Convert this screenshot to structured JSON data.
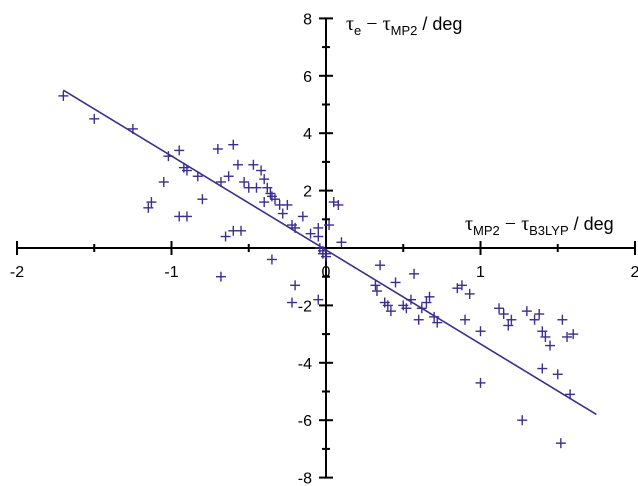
{
  "chart_data": {
    "type": "scatter",
    "xlim": [
      -2,
      2
    ],
    "ylim": [
      -8,
      8
    ],
    "x_ticks": [
      "-2",
      "-1",
      "0",
      "1",
      "2"
    ],
    "y_ticks": [
      "8",
      "6",
      "4",
      "2",
      "-2",
      "-4",
      "-6",
      "-8"
    ],
    "xlabel": {
      "tau": "τ",
      "sub1": "MP2",
      "dash": " − ",
      "tau2": "τ",
      "sub2": "B3LYP",
      "unit": " / deg"
    },
    "ylabel": {
      "tau": "τ",
      "sub1": "e",
      "dash": " − ",
      "tau2": "τ",
      "sub2": "MP2",
      "unit": " / deg"
    },
    "marker": "+",
    "colors": {
      "points": "#3a2f8f",
      "line": "#3a2f8f",
      "axes": "#000000"
    },
    "points": [
      [
        -1.7,
        5.3
      ],
      [
        -1.5,
        4.5
      ],
      [
        -1.25,
        4.15
      ],
      [
        -1.15,
        1.4
      ],
      [
        -1.13,
        1.6
      ],
      [
        -1.02,
        3.2
      ],
      [
        -0.95,
        3.4
      ],
      [
        -0.92,
        2.8
      ],
      [
        -0.9,
        2.7
      ],
      [
        -0.83,
        2.5
      ],
      [
        -1.05,
        2.3
      ],
      [
        -0.95,
        1.1
      ],
      [
        -0.9,
        1.1
      ],
      [
        -0.8,
        1.7
      ],
      [
        -0.7,
        3.45
      ],
      [
        -0.68,
        2.3
      ],
      [
        -0.63,
        2.5
      ],
      [
        -0.6,
        3.6
      ],
      [
        -0.57,
        2.9
      ],
      [
        -0.53,
        2.3
      ],
      [
        -0.5,
        2.1
      ],
      [
        -0.47,
        2.9
      ],
      [
        -0.45,
        2.1
      ],
      [
        -0.42,
        2.7
      ],
      [
        -0.4,
        2.4
      ],
      [
        -0.38,
        2.1
      ],
      [
        -0.36,
        1.9
      ],
      [
        -0.33,
        1.7
      ],
      [
        -0.3,
        1.5
      ],
      [
        -0.28,
        1.2
      ],
      [
        -0.35,
        1.8
      ],
      [
        -0.4,
        1.6
      ],
      [
        -0.25,
        1.5
      ],
      [
        -0.22,
        0.8
      ],
      [
        -0.2,
        0.7
      ],
      [
        -0.15,
        1.1
      ],
      [
        -0.1,
        0.5
      ],
      [
        -0.05,
        0.4
      ],
      [
        -0.04,
        0.0
      ],
      [
        -0.02,
        -0.1
      ],
      [
        0.0,
        -0.3
      ],
      [
        0.02,
        0.8
      ],
      [
        0.05,
        1.6
      ],
      [
        0.08,
        1.5
      ],
      [
        0.1,
        0.2
      ],
      [
        -0.05,
        -1.8
      ],
      [
        -0.6,
        0.6
      ],
      [
        -0.65,
        0.4
      ],
      [
        -0.55,
        0.6
      ],
      [
        -0.68,
        -1.0
      ],
      [
        -0.35,
        -0.4
      ],
      [
        -0.2,
        -1.3
      ],
      [
        -0.22,
        -1.9
      ],
      [
        -0.05,
        0.7
      ],
      [
        -0.02,
        -0.2
      ],
      [
        0.0,
        -0.2
      ],
      [
        0.32,
        -1.3
      ],
      [
        0.33,
        -1.5
      ],
      [
        0.35,
        -0.6
      ],
      [
        0.38,
        -1.9
      ],
      [
        0.4,
        -2.0
      ],
      [
        0.42,
        -2.2
      ],
      [
        0.45,
        -1.2
      ],
      [
        0.5,
        -2.0
      ],
      [
        0.52,
        -2.1
      ],
      [
        0.55,
        -1.8
      ],
      [
        0.57,
        -0.9
      ],
      [
        0.6,
        -2.5
      ],
      [
        0.62,
        -2.1
      ],
      [
        0.65,
        -1.9
      ],
      [
        0.67,
        -1.7
      ],
      [
        0.7,
        -2.4
      ],
      [
        0.72,
        -2.6
      ],
      [
        0.85,
        -1.4
      ],
      [
        0.88,
        -1.3
      ],
      [
        0.9,
        -2.5
      ],
      [
        0.93,
        -1.6
      ],
      [
        1.0,
        -2.9
      ],
      [
        1.0,
        -4.7
      ],
      [
        1.12,
        -2.1
      ],
      [
        1.15,
        -2.3
      ],
      [
        1.18,
        -2.7
      ],
      [
        1.2,
        -2.5
      ],
      [
        1.3,
        -2.2
      ],
      [
        1.35,
        -2.5
      ],
      [
        1.38,
        -2.3
      ],
      [
        1.4,
        -2.9
      ],
      [
        1.42,
        -3.1
      ],
      [
        1.45,
        -3.4
      ],
      [
        1.5,
        -4.4
      ],
      [
        1.53,
        -2.5
      ],
      [
        1.56,
        -3.1
      ],
      [
        1.58,
        -5.1
      ],
      [
        1.6,
        -3.0
      ],
      [
        1.4,
        -4.2
      ],
      [
        1.27,
        -6.0
      ],
      [
        1.52,
        -6.8
      ]
    ],
    "fit_line": {
      "x": [
        -1.7,
        1.75
      ],
      "y": [
        5.5,
        -5.8
      ]
    }
  }
}
